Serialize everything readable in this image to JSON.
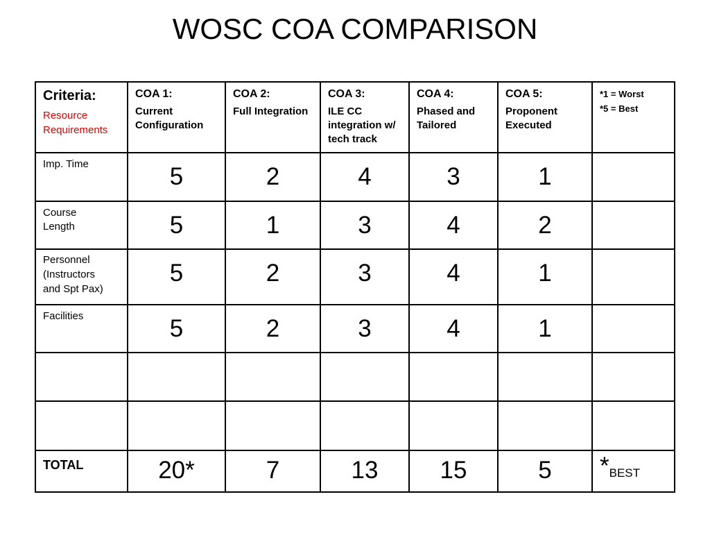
{
  "title": "WOSC COA COMPARISON",
  "table": {
    "header": {
      "criteria": "Criteria:",
      "criteria_note": "Resource Requirements",
      "columns": [
        {
          "label": "COA 1:",
          "description": "Current Configuration"
        },
        {
          "label": "COA 2:",
          "description": "Full Integration"
        },
        {
          "label": "COA 3:",
          "description": "ILE CC integration w/ tech track"
        },
        {
          "label": "COA 4:",
          "description": "Phased and Tailored"
        },
        {
          "label": "COA 5:",
          "description": "Proponent Executed"
        }
      ],
      "legend": [
        "*1 = Worst",
        "*5 = Best"
      ]
    },
    "rows": [
      {
        "label": [
          "Imp. Time"
        ],
        "values": [
          5,
          2,
          4,
          3,
          1
        ]
      },
      {
        "label": [
          "Course",
          "Length"
        ],
        "values": [
          5,
          1,
          3,
          4,
          2
        ]
      },
      {
        "label": [
          "Personnel",
          "(Instructors",
          "and Spt Pax)"
        ],
        "values": [
          5,
          2,
          3,
          4,
          1
        ]
      },
      {
        "label": [
          "Facilities"
        ],
        "values": [
          5,
          2,
          3,
          4,
          1
        ]
      }
    ],
    "total": {
      "label": "TOTAL",
      "values": [
        "20*",
        7,
        13,
        15,
        5
      ],
      "note_mark": "*",
      "note": "BEST"
    }
  }
}
